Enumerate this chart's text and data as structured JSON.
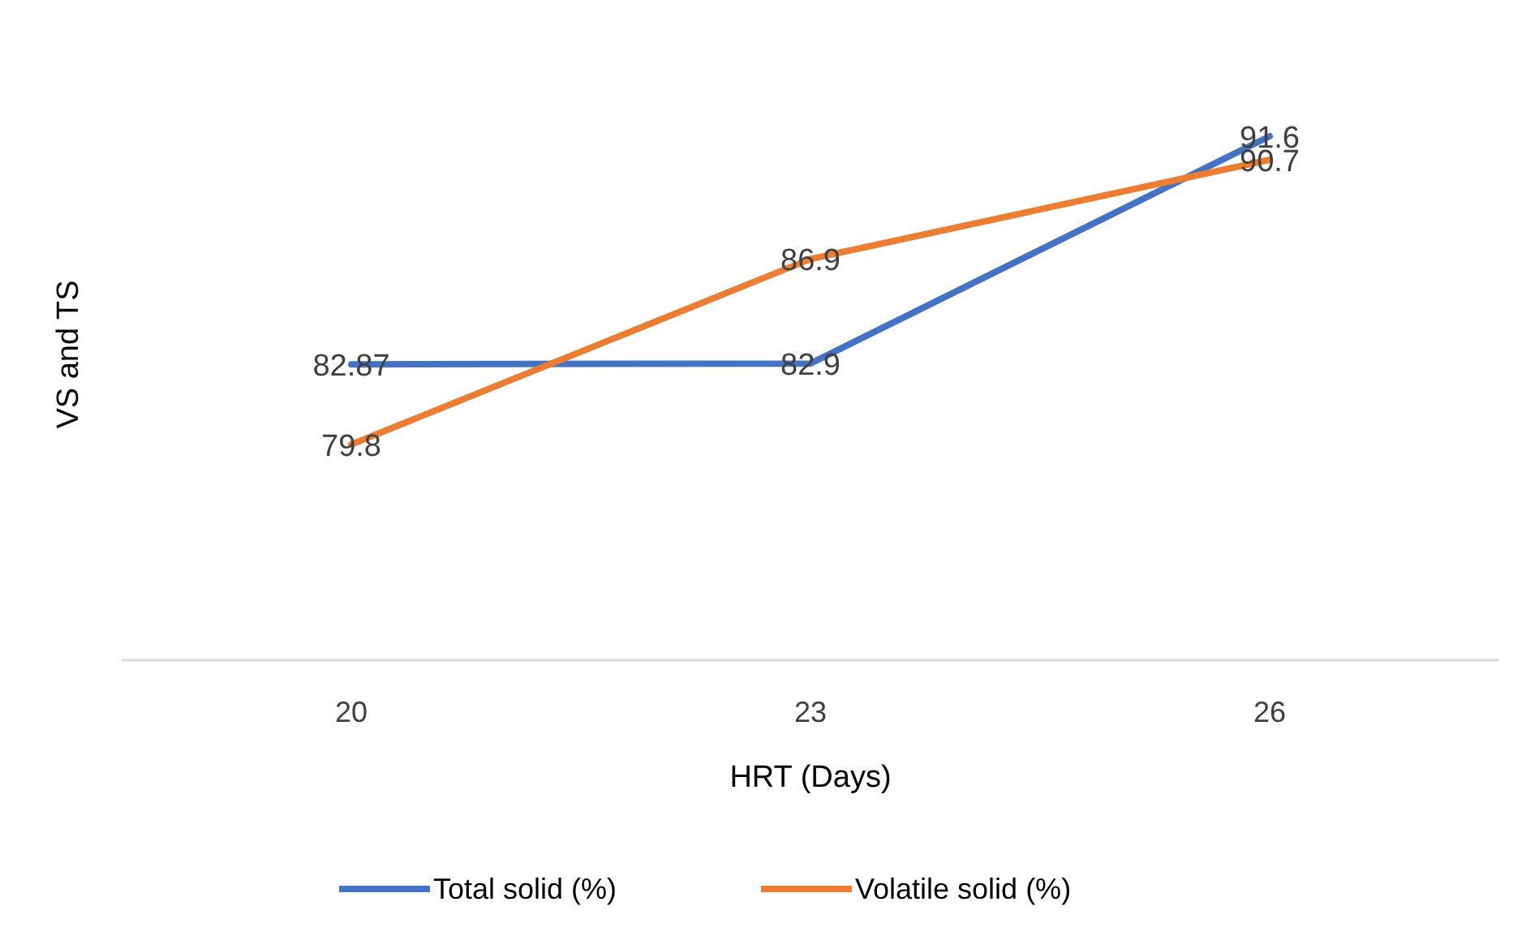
{
  "chart_data": {
    "type": "line",
    "xlabel": "HRT (Days)",
    "ylabel": "VS and TS",
    "categories": [
      "20",
      "23",
      "26"
    ],
    "series": [
      {
        "name": "Total solid (%)",
        "color": "#4472c4",
        "values": [
          82.87,
          82.9,
          91.6
        ]
      },
      {
        "name": "Volatile solid (%)",
        "color": "#ed7d31",
        "values": [
          79.8,
          86.9,
          90.7
        ]
      }
    ],
    "tick_labels": "x",
    "data_labels": true,
    "legend": "bottom",
    "grid": false,
    "marker": "none",
    "line_style": "solid"
  }
}
